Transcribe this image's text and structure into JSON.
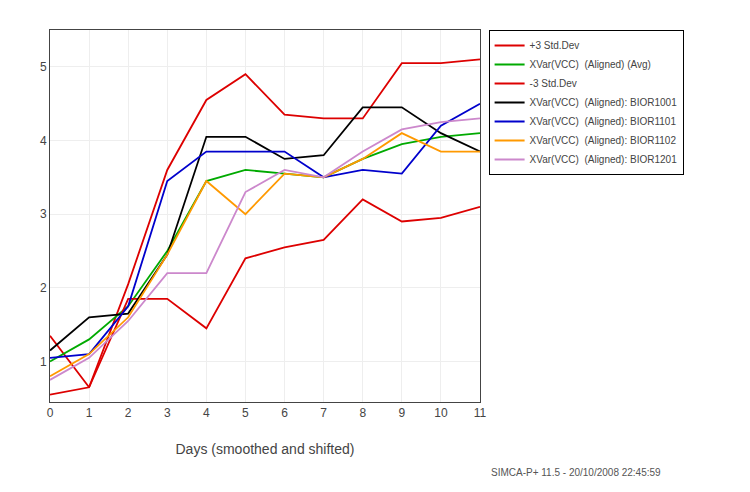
{
  "chart_data": {
    "type": "line",
    "x": [
      0,
      1,
      2,
      3,
      4,
      5,
      6,
      7,
      8,
      9,
      10,
      11
    ],
    "series": [
      {
        "name": "+3 Std.Dev",
        "color": "#dd0000",
        "values": [
          1.35,
          0.65,
          2.05,
          3.6,
          4.55,
          4.9,
          4.35,
          4.3,
          4.3,
          5.05,
          5.05,
          5.1
        ]
      },
      {
        "name": "XVar(VCC)  (Aligned) (Avg)",
        "color": "#00aa00",
        "values": [
          1.0,
          1.3,
          1.75,
          2.5,
          3.45,
          3.6,
          3.55,
          3.5,
          3.75,
          3.95,
          4.05,
          4.1
        ]
      },
      {
        "name": "-3 Std.Dev",
        "color": "#dd0000",
        "values": [
          0.55,
          0.65,
          1.85,
          1.85,
          1.45,
          2.4,
          2.55,
          2.65,
          3.2,
          2.9,
          2.95,
          3.1
        ]
      },
      {
        "name": "XVar(VCC)  (Aligned): BIOR1001",
        "color": "#000000",
        "values": [
          1.15,
          1.6,
          1.65,
          2.45,
          4.05,
          4.05,
          3.75,
          3.8,
          4.45,
          4.45,
          4.1,
          3.85
        ]
      },
      {
        "name": "XVar(VCC)  (Aligned): BIOR1101",
        "color": "#0000cc",
        "values": [
          1.05,
          1.1,
          1.75,
          3.45,
          3.85,
          3.85,
          3.85,
          3.5,
          3.6,
          3.55,
          4.2,
          4.5
        ]
      },
      {
        "name": "XVar(VCC)  (Aligned): BIOR1102",
        "color": "#ff9900",
        "values": [
          0.8,
          1.1,
          1.6,
          2.45,
          3.45,
          3.0,
          3.55,
          3.5,
          3.75,
          4.1,
          3.85,
          3.85
        ]
      },
      {
        "name": "XVar(VCC)  (Aligned): BIOR1201",
        "color": "#cc88cc",
        "values": [
          0.75,
          1.05,
          1.55,
          2.2,
          2.2,
          3.3,
          3.6,
          3.5,
          3.85,
          4.15,
          4.25,
          4.3
        ]
      }
    ],
    "xlabel": "Days (smoothed and shifted)",
    "xlim": [
      0,
      11
    ],
    "xticks": [
      0,
      1,
      2,
      3,
      4,
      5,
      6,
      7,
      8,
      9,
      10,
      11
    ],
    "ylim": [
      0.45,
      5.5
    ],
    "yticks": [
      1,
      2,
      3,
      4,
      5
    ],
    "grid": true,
    "legend": "upper right",
    "annotations": [
      "SIMCA-P+ 11.5 - 20/10/2008 22:45:59"
    ]
  }
}
